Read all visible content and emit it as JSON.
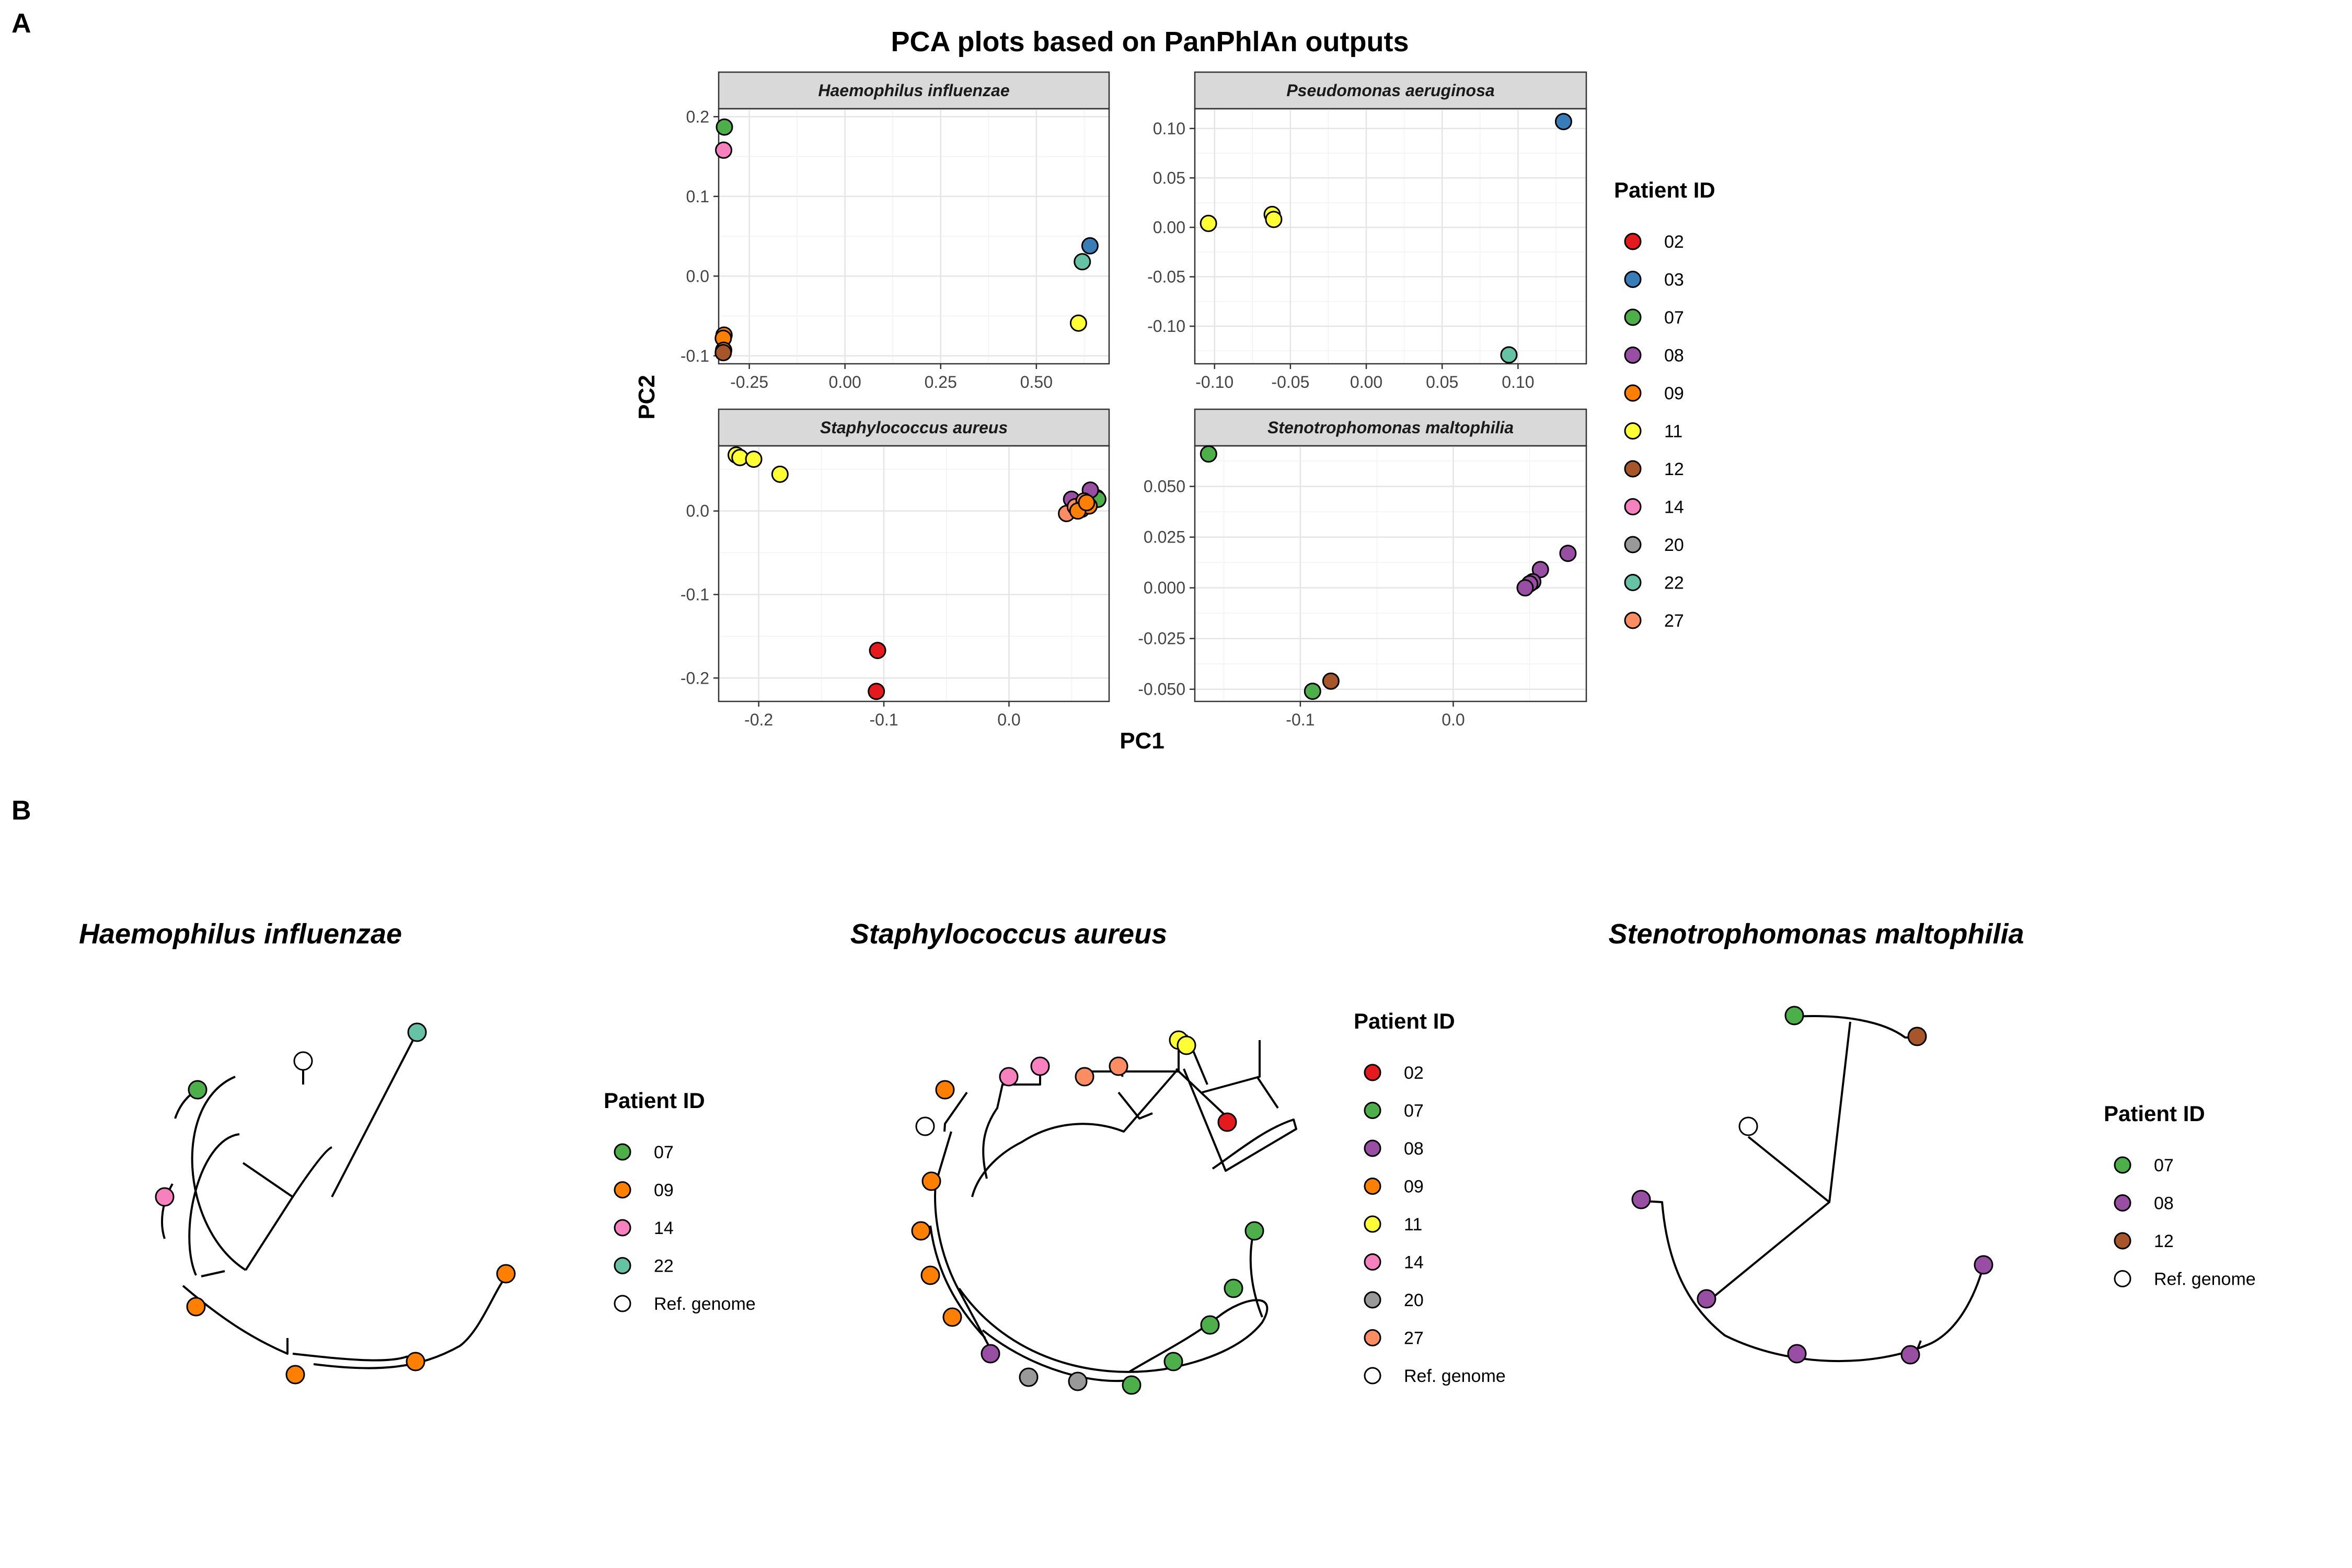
{
  "panel_labels": {
    "a": "A",
    "b": "B"
  },
  "pca": {
    "title": "PCA plots based on PanPhlAn outputs",
    "xlabel": "PC1",
    "ylabel": "PC2"
  },
  "colors": {
    "02": "#e41a1c",
    "03": "#377eb8",
    "07": "#4daf4a",
    "08": "#984ea3",
    "09": "#ff7f00",
    "11": "#ffff33",
    "12": "#a65628",
    "14": "#f781bf",
    "20": "#999999",
    "22": "#66c2a5",
    "27": "#fc8d62",
    "Ref. genome": "#ffffff"
  },
  "legends": {
    "pca": {
      "title": "Patient ID",
      "items": [
        "02",
        "03",
        "07",
        "08",
        "09",
        "11",
        "12",
        "14",
        "20",
        "22",
        "27"
      ]
    },
    "tree_h": {
      "title": "Patient ID",
      "items": [
        "07",
        "09",
        "14",
        "22",
        "Ref. genome"
      ]
    },
    "tree_s": {
      "title": "Patient ID",
      "items": [
        "02",
        "07",
        "08",
        "09",
        "11",
        "14",
        "20",
        "27",
        "Ref. genome"
      ]
    },
    "tree_st": {
      "title": "Patient ID",
      "items": [
        "07",
        "08",
        "12",
        "Ref. genome"
      ]
    }
  },
  "chart_data": [
    {
      "type": "scatter",
      "title": "Haemophilus influenzae",
      "xlim": [
        -0.33,
        0.69
      ],
      "ylim": [
        -0.11,
        0.21
      ],
      "xticks": [
        -0.25,
        0.0,
        0.25,
        0.5
      ],
      "xtick_labels": [
        "-0.25",
        "0.00",
        "0.25",
        "0.50"
      ],
      "yticks": [
        -0.1,
        0.0,
        0.1,
        0.2
      ],
      "ytick_labels": [
        "-0.1",
        "0.0",
        "0.1",
        "0.2"
      ],
      "points": [
        {
          "x": -0.315,
          "y": 0.187,
          "patient": "07"
        },
        {
          "x": -0.317,
          "y": 0.158,
          "patient": "14"
        },
        {
          "x": 0.64,
          "y": 0.038,
          "patient": "03"
        },
        {
          "x": 0.62,
          "y": 0.018,
          "patient": "22"
        },
        {
          "x": 0.61,
          "y": -0.059,
          "patient": "11"
        },
        {
          "x": -0.316,
          "y": -0.074,
          "patient": "09"
        },
        {
          "x": -0.318,
          "y": -0.078,
          "patient": "09"
        },
        {
          "x": -0.317,
          "y": -0.093,
          "patient": "09"
        },
        {
          "x": -0.318,
          "y": -0.096,
          "patient": "12"
        }
      ]
    },
    {
      "type": "scatter",
      "title": "Pseudomonas aeruginosa",
      "xlim": [
        -0.113,
        0.145
      ],
      "ylim": [
        -0.138,
        0.12
      ],
      "xticks": [
        -0.1,
        -0.05,
        0.0,
        0.05,
        0.1
      ],
      "xtick_labels": [
        "-0.10",
        "-0.05",
        "0.00",
        "0.05",
        "0.10"
      ],
      "yticks": [
        -0.1,
        -0.05,
        0.0,
        0.05,
        0.1
      ],
      "ytick_labels": [
        "-0.10",
        "-0.05",
        "0.00",
        "0.05",
        "0.10"
      ],
      "points": [
        {
          "x": 0.13,
          "y": 0.107,
          "patient": "03"
        },
        {
          "x": -0.104,
          "y": 0.004,
          "patient": "11"
        },
        {
          "x": -0.062,
          "y": 0.013,
          "patient": "11"
        },
        {
          "x": -0.061,
          "y": 0.008,
          "patient": "11"
        },
        {
          "x": 0.094,
          "y": -0.129,
          "patient": "22"
        }
      ]
    },
    {
      "type": "scatter",
      "title": "Staphylococcus aureus",
      "xlim": [
        -0.232,
        0.08
      ],
      "ylim": [
        -0.228,
        0.078
      ],
      "xticks": [
        -0.2,
        -0.1,
        0.0
      ],
      "xtick_labels": [
        "-0.2",
        "-0.1",
        "0.0"
      ],
      "yticks": [
        -0.2,
        -0.1,
        0.0
      ],
      "ytick_labels": [
        "-0.2",
        "-0.1",
        "0.0"
      ],
      "points": [
        {
          "x": -0.218,
          "y": 0.067,
          "patient": "11"
        },
        {
          "x": -0.215,
          "y": 0.064,
          "patient": "11"
        },
        {
          "x": -0.204,
          "y": 0.062,
          "patient": "11"
        },
        {
          "x": -0.183,
          "y": 0.044,
          "patient": "11"
        },
        {
          "x": 0.07,
          "y": 0.016,
          "patient": "07"
        },
        {
          "x": 0.071,
          "y": 0.014,
          "patient": "07"
        },
        {
          "x": 0.065,
          "y": 0.025,
          "patient": "08"
        },
        {
          "x": 0.05,
          "y": 0.014,
          "patient": "08"
        },
        {
          "x": 0.057,
          "y": 0.007,
          "patient": "08"
        },
        {
          "x": 0.046,
          "y": -0.003,
          "patient": "27"
        },
        {
          "x": 0.053,
          "y": 0.005,
          "patient": "27"
        },
        {
          "x": 0.06,
          "y": 0.012,
          "patient": "27"
        },
        {
          "x": 0.058,
          "y": 0.002,
          "patient": "09"
        },
        {
          "x": 0.064,
          "y": 0.006,
          "patient": "09"
        },
        {
          "x": 0.055,
          "y": 0.0,
          "patient": "09"
        },
        {
          "x": 0.062,
          "y": 0.01,
          "patient": "09"
        },
        {
          "x": -0.105,
          "y": -0.167,
          "patient": "02"
        },
        {
          "x": -0.106,
          "y": -0.216,
          "patient": "02"
        }
      ]
    },
    {
      "type": "scatter",
      "title": "Stenotrophomonas maltophilia",
      "xlim": [
        -0.169,
        0.087
      ],
      "ylim": [
        -0.056,
        0.07
      ],
      "xticks": [
        -0.1,
        0.0
      ],
      "xtick_labels": [
        "-0.1",
        "0.0"
      ],
      "yticks": [
        -0.05,
        -0.025,
        0.0,
        0.025,
        0.05
      ],
      "ytick_labels": [
        "-0.050",
        "-0.025",
        "0.000",
        "0.025",
        "0.050"
      ],
      "points": [
        {
          "x": -0.16,
          "y": 0.066,
          "patient": "07"
        },
        {
          "x": 0.075,
          "y": 0.017,
          "patient": "08"
        },
        {
          "x": 0.057,
          "y": 0.009,
          "patient": "08"
        },
        {
          "x": 0.052,
          "y": 0.003,
          "patient": "08"
        },
        {
          "x": 0.05,
          "y": 0.002,
          "patient": "08"
        },
        {
          "x": 0.047,
          "y": 0.0,
          "patient": "08"
        },
        {
          "x": -0.092,
          "y": -0.051,
          "patient": "07"
        },
        {
          "x": -0.08,
          "y": -0.046,
          "patient": "12"
        }
      ]
    }
  ],
  "trees": [
    {
      "title": "Haemophilus influenzae",
      "tips": [
        {
          "patient": "22"
        },
        {
          "patient": "Ref. genome"
        },
        {
          "patient": "07"
        },
        {
          "patient": "14"
        },
        {
          "patient": "09"
        },
        {
          "patient": "09"
        },
        {
          "patient": "09"
        },
        {
          "patient": "09"
        }
      ]
    },
    {
      "title": "Staphylococcus aureus",
      "tips": [
        {
          "patient": "11"
        },
        {
          "patient": "27"
        },
        {
          "patient": "27"
        },
        {
          "patient": "14"
        },
        {
          "patient": "14"
        },
        {
          "patient": "09"
        },
        {
          "patient": "Ref. genome"
        },
        {
          "patient": "09"
        },
        {
          "patient": "09"
        },
        {
          "patient": "09"
        },
        {
          "patient": "09"
        },
        {
          "patient": "08"
        },
        {
          "patient": "20"
        },
        {
          "patient": "20"
        },
        {
          "patient": "07"
        },
        {
          "patient": "07"
        },
        {
          "patient": "07"
        },
        {
          "patient": "07"
        },
        {
          "patient": "07"
        },
        {
          "patient": "02"
        },
        {
          "patient": "11"
        }
      ]
    },
    {
      "title": "Stenotrophomonas maltophilia",
      "tips": [
        {
          "patient": "07"
        },
        {
          "patient": "12"
        },
        {
          "patient": "Ref. genome"
        },
        {
          "patient": "08"
        },
        {
          "patient": "08"
        },
        {
          "patient": "08"
        },
        {
          "patient": "08"
        },
        {
          "patient": "08"
        }
      ]
    }
  ]
}
